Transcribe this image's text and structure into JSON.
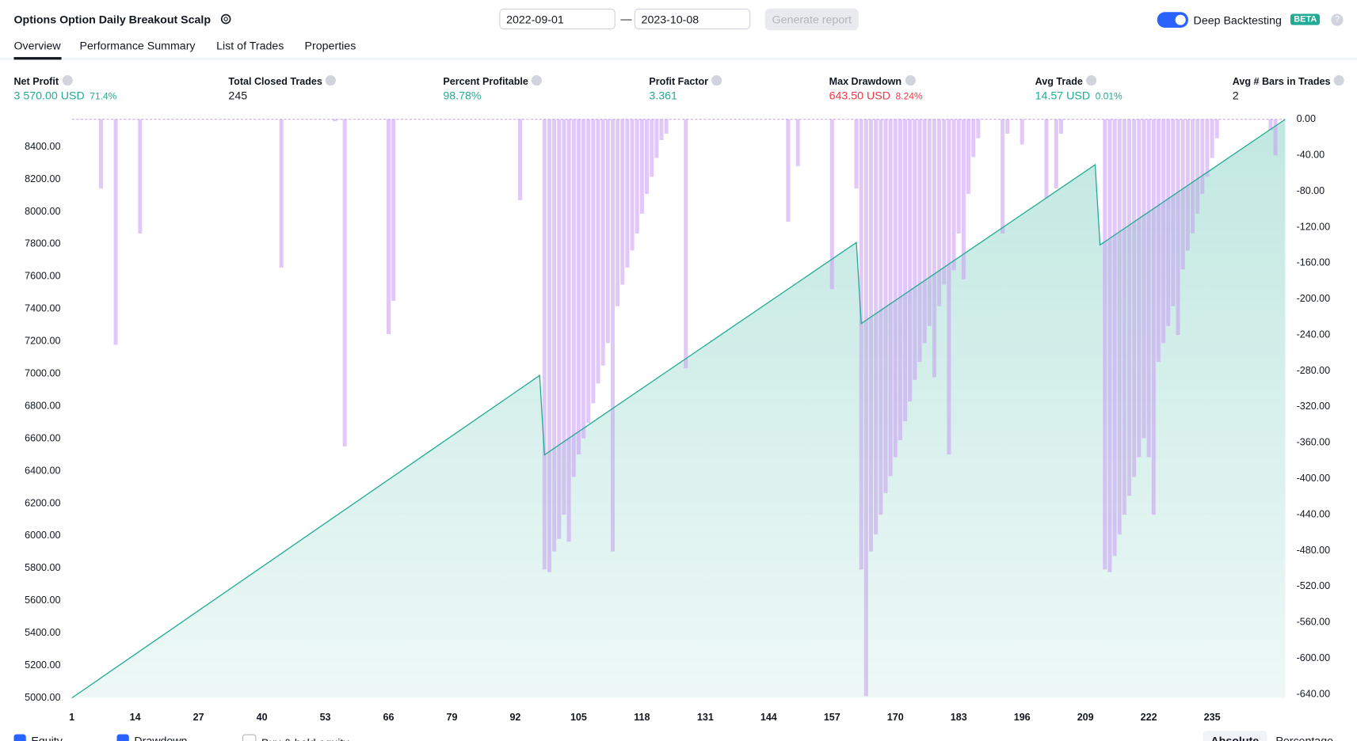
{
  "header": {
    "title": "Options Option Daily Breakout Scalp",
    "date_from": "2022-09-01",
    "date_sep": "—",
    "date_to": "2023-10-08",
    "generate": "Generate report",
    "deep": "Deep Backtesting",
    "beta": "BETA",
    "help": "?"
  },
  "tabs": [
    "Overview",
    "Performance Summary",
    "List of Trades",
    "Properties"
  ],
  "metrics": [
    {
      "label": "Net Profit",
      "value": "3 570.00 USD",
      "sub": "71.4%",
      "tone": "pos"
    },
    {
      "label": "Total Closed Trades",
      "value": "245",
      "tone": "plain"
    },
    {
      "label": "Percent Profitable",
      "value": "98.78%",
      "tone": "pos"
    },
    {
      "label": "Profit Factor",
      "value": "3.361",
      "tone": "pos"
    },
    {
      "label": "Max Drawdown",
      "value": "643.50 USD",
      "sub": "8.24%",
      "tone": "neg"
    },
    {
      "label": "Avg Trade",
      "value": "14.57 USD",
      "sub": "0.01%",
      "tone": "pos"
    },
    {
      "label": "Avg # Bars in Trades",
      "value": "2",
      "tone": "plain"
    }
  ],
  "chart_data": {
    "type": "equity-drawdown",
    "xlim": [
      1,
      250
    ],
    "xticks": [
      1,
      14,
      27,
      40,
      53,
      66,
      79,
      92,
      105,
      118,
      131,
      144,
      157,
      170,
      183,
      196,
      209,
      222,
      235
    ],
    "ylim": [
      5000,
      8570
    ],
    "yticks": [
      {
        "value": 5000,
        "label": "5000.00"
      },
      {
        "value": 5200,
        "label": "5200.00"
      },
      {
        "value": 5400,
        "label": "5400.00"
      },
      {
        "value": 5600,
        "label": "5600.00"
      },
      {
        "value": 5800,
        "label": "5800.00"
      },
      {
        "value": 6000,
        "label": "6000.00"
      },
      {
        "value": 6200,
        "label": "6200.00"
      },
      {
        "value": 6400,
        "label": "6400.00"
      },
      {
        "value": 6600,
        "label": "6600.00"
      },
      {
        "value": 6800,
        "label": "6800.00"
      },
      {
        "value": 7000,
        "label": "7000.00"
      },
      {
        "value": 7200,
        "label": "7200.00"
      },
      {
        "value": 7400,
        "label": "7400.00"
      },
      {
        "value": 7600,
        "label": "7600.00"
      },
      {
        "value": 7800,
        "label": "7800.00"
      },
      {
        "value": 8000,
        "label": "8000.00"
      },
      {
        "value": 8200,
        "label": "8200.00"
      },
      {
        "value": 8400,
        "label": "8400.00"
      }
    ],
    "y2lim": [
      -644,
      0
    ],
    "y2ticks": [
      {
        "value": 0,
        "label": "0.00"
      },
      {
        "value": -40,
        "label": "-40.00"
      },
      {
        "value": -80,
        "label": "-80.00"
      },
      {
        "value": -120,
        "label": "-120.00"
      },
      {
        "value": -160,
        "label": "-160.00"
      },
      {
        "value": -200,
        "label": "-200.00"
      },
      {
        "value": -240,
        "label": "-240.00"
      },
      {
        "value": -280,
        "label": "-280.00"
      },
      {
        "value": -320,
        "label": "-320.00"
      },
      {
        "value": -360,
        "label": "-360.00"
      },
      {
        "value": -400,
        "label": "-400.00"
      },
      {
        "value": -440,
        "label": "-440.00"
      },
      {
        "value": -480,
        "label": "-480.00"
      },
      {
        "value": -520,
        "label": "-520.00"
      },
      {
        "value": -560,
        "label": "-560.00"
      },
      {
        "value": -600,
        "label": "-600.00"
      },
      {
        "value": -640,
        "label": "-640.00"
      }
    ],
    "series": [
      {
        "name": "Equity",
        "color": "#22ab94",
        "x": [
          1,
          97,
          98,
          162,
          163,
          211,
          212,
          250
        ],
        "values": [
          5000,
          6990,
          6500,
          7810,
          7310,
          8290,
          7795,
          8570
        ]
      },
      {
        "name": "Drawdown",
        "color": "#c99bf2",
        "axis": "y2",
        "x": [
          7,
          10,
          15,
          44,
          55,
          57,
          66,
          67,
          93,
          98,
          99,
          100,
          101,
          102,
          103,
          104,
          105,
          106,
          107,
          108,
          109,
          110,
          111,
          112,
          113,
          114,
          115,
          116,
          117,
          118,
          119,
          120,
          121,
          122,
          123,
          127,
          148,
          150,
          157,
          162,
          163,
          164,
          165,
          166,
          167,
          168,
          169,
          170,
          171,
          172,
          173,
          174,
          175,
          176,
          177,
          178,
          179,
          180,
          181,
          182,
          183,
          184,
          185,
          186,
          187,
          192,
          193,
          196,
          201,
          203,
          204,
          213,
          214,
          215,
          216,
          217,
          218,
          219,
          220,
          221,
          222,
          223,
          224,
          225,
          226,
          227,
          228,
          229,
          230,
          231,
          232,
          233,
          234,
          235,
          236,
          247,
          248
        ],
        "values": [
          -77,
          -251,
          -127,
          -165,
          -2,
          -364,
          -239,
          -202,
          -90,
          -501,
          -504,
          -481,
          -467,
          -440,
          -470,
          -398,
          -373,
          -355,
          -338,
          -316,
          -294,
          -274,
          -249,
          -481,
          -208,
          -184,
          -165,
          -146,
          -127,
          -105,
          -83,
          -64,
          -43,
          -23,
          -16,
          -277,
          -114,
          -52,
          -189,
          -77,
          -501,
          -642,
          -481,
          -462,
          -440,
          -416,
          -397,
          -376,
          -357,
          -336,
          -314,
          -290,
          -270,
          -249,
          -230,
          -287,
          -208,
          -184,
          -373,
          -168,
          -127,
          -178,
          -83,
          -42,
          -21,
          -127,
          -16,
          -28,
          -88,
          -77,
          -16,
          -501,
          -504,
          -486,
          -462,
          -440,
          -419,
          -398,
          -376,
          -355,
          -376,
          -440,
          -270,
          -249,
          -230,
          -208,
          -240,
          -167,
          -146,
          -127,
          -105,
          -83,
          -64,
          -43,
          -21,
          -12,
          -40
        ]
      }
    ]
  },
  "footer": {
    "buyhold": "Buy & hold equity",
    "absolute": "Absolute",
    "percentage": "Percentage"
  }
}
